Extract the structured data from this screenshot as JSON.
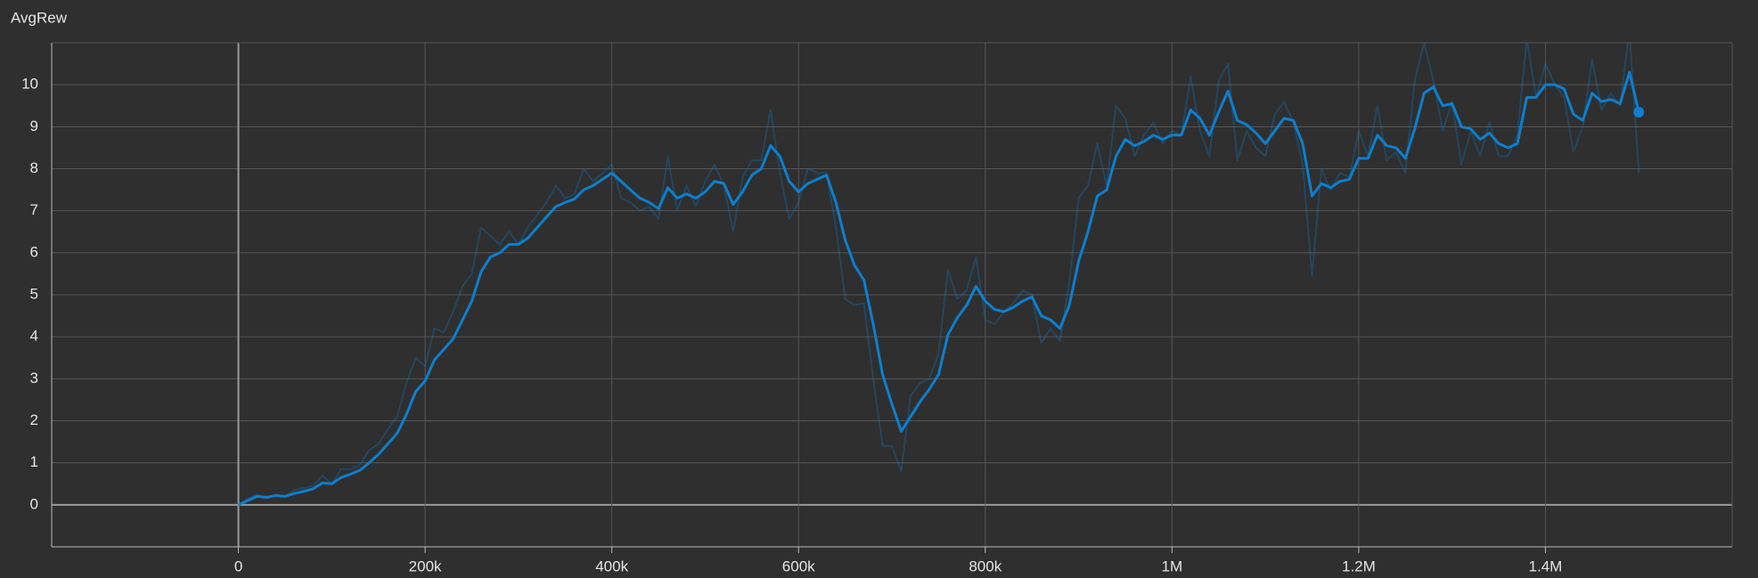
{
  "chart_data": {
    "type": "line",
    "title": "AvgRew",
    "x": [
      0,
      10000,
      20000,
      30000,
      40000,
      50000,
      60000,
      70000,
      80000,
      90000,
      100000,
      110000,
      120000,
      130000,
      140000,
      150000,
      160000,
      170000,
      180000,
      190000,
      200000,
      210000,
      220000,
      230000,
      240000,
      250000,
      260000,
      270000,
      280000,
      290000,
      300000,
      310000,
      320000,
      330000,
      340000,
      350000,
      360000,
      370000,
      380000,
      390000,
      400000,
      410000,
      420000,
      430000,
      440000,
      450000,
      460000,
      470000,
      480000,
      490000,
      500000,
      510000,
      520000,
      530000,
      540000,
      550000,
      560000,
      570000,
      580000,
      590000,
      600000,
      610000,
      620000,
      630000,
      640000,
      650000,
      660000,
      670000,
      680000,
      690000,
      700000,
      710000,
      720000,
      730000,
      740000,
      750000,
      760000,
      770000,
      780000,
      790000,
      800000,
      810000,
      820000,
      830000,
      840000,
      850000,
      860000,
      870000,
      880000,
      890000,
      900000,
      910000,
      920000,
      930000,
      940000,
      950000,
      960000,
      970000,
      980000,
      990000,
      1000000,
      1010000,
      1020000,
      1030000,
      1040000,
      1050000,
      1060000,
      1070000,
      1080000,
      1090000,
      1100000,
      1110000,
      1120000,
      1130000,
      1140000,
      1150000,
      1160000,
      1170000,
      1180000,
      1190000,
      1200000,
      1210000,
      1220000,
      1230000,
      1240000,
      1250000,
      1260000,
      1270000,
      1280000,
      1290000,
      1300000,
      1310000,
      1320000,
      1330000,
      1340000,
      1350000,
      1360000,
      1370000,
      1380000,
      1390000,
      1400000,
      1410000,
      1420000,
      1430000,
      1440000,
      1450000,
      1460000,
      1470000,
      1480000,
      1490000,
      1500000
    ],
    "series": [
      {
        "color": "#0c7fcf",
        "opacity": 0.3,
        "values": [
          0,
          0.15,
          0.25,
          0.15,
          0.25,
          0.2,
          0.35,
          0.4,
          0.45,
          0.7,
          0.5,
          0.85,
          0.85,
          0.95,
          1.3,
          1.45,
          1.8,
          2.1,
          2.9,
          3.5,
          3.3,
          4.2,
          4.1,
          4.6,
          5.2,
          5.5,
          6.6,
          6.4,
          6.2,
          6.5,
          6.2,
          6.6,
          6.9,
          7.2,
          7.6,
          7.3,
          7.4,
          8.0,
          7.7,
          7.9,
          8.1,
          7.3,
          7.2,
          7.0,
          7.1,
          6.8,
          8.3,
          7.0,
          7.6,
          7.1,
          7.7,
          8.1,
          7.6,
          6.5,
          7.8,
          8.2,
          8.2,
          9.4,
          7.9,
          6.8,
          7.2,
          8.0,
          7.9,
          7.9,
          6.6,
          4.9,
          4.75,
          4.8,
          3.0,
          1.4,
          1.4,
          0.8,
          2.6,
          2.9,
          3.0,
          3.6,
          5.6,
          4.9,
          5.1,
          5.9,
          4.4,
          4.3,
          4.6,
          4.8,
          5.1,
          5.0,
          3.85,
          4.2,
          3.9,
          5.3,
          7.3,
          7.6,
          8.6,
          7.6,
          9.5,
          9.2,
          8.3,
          8.8,
          9.1,
          8.6,
          8.9,
          8.8,
          10.2,
          8.9,
          8.3,
          10.1,
          10.5,
          8.2,
          8.9,
          8.5,
          8.3,
          9.3,
          9.6,
          9.1,
          8.1,
          5.45,
          8.0,
          7.5,
          7.9,
          7.8,
          8.9,
          8.3,
          9.5,
          8.2,
          8.4,
          7.9,
          10.1,
          11.0,
          10.1,
          8.9,
          9.6,
          8.1,
          8.9,
          8.3,
          9.1,
          8.3,
          8.3,
          8.8,
          11.1,
          9.7,
          10.5,
          10.0,
          9.7,
          8.4,
          9.0,
          10.6,
          9.4,
          9.8,
          9.5,
          11.3,
          7.9
        ]
      },
      {
        "color": "#0c7fcf",
        "opacity": 1,
        "marker_last": true,
        "values": [
          0,
          0.1,
          0.2,
          0.18,
          0.22,
          0.2,
          0.27,
          0.32,
          0.38,
          0.52,
          0.5,
          0.65,
          0.73,
          0.82,
          1.0,
          1.2,
          1.45,
          1.7,
          2.15,
          2.7,
          2.95,
          3.45,
          3.7,
          3.95,
          4.4,
          4.85,
          5.55,
          5.9,
          6.0,
          6.2,
          6.2,
          6.35,
          6.6,
          6.85,
          7.1,
          7.2,
          7.28,
          7.5,
          7.6,
          7.75,
          7.9,
          7.7,
          7.5,
          7.3,
          7.2,
          7.05,
          7.55,
          7.3,
          7.4,
          7.3,
          7.45,
          7.7,
          7.65,
          7.15,
          7.45,
          7.85,
          8.0,
          8.55,
          8.3,
          7.7,
          7.45,
          7.65,
          7.75,
          7.85,
          7.2,
          6.3,
          5.7,
          5.35,
          4.3,
          3.1,
          2.4,
          1.75,
          2.1,
          2.45,
          2.75,
          3.1,
          4.05,
          4.45,
          4.75,
          5.2,
          4.85,
          4.65,
          4.6,
          4.7,
          4.85,
          4.95,
          4.5,
          4.4,
          4.2,
          4.75,
          5.8,
          6.5,
          7.35,
          7.5,
          8.3,
          8.7,
          8.55,
          8.65,
          8.8,
          8.7,
          8.8,
          8.8,
          9.4,
          9.2,
          8.8,
          9.35,
          9.85,
          9.15,
          9.05,
          8.85,
          8.6,
          8.9,
          9.2,
          9.15,
          8.6,
          7.35,
          7.65,
          7.55,
          7.7,
          7.75,
          8.25,
          8.25,
          8.8,
          8.55,
          8.5,
          8.25,
          8.95,
          9.8,
          9.95,
          9.5,
          9.55,
          9.0,
          8.95,
          8.7,
          8.85,
          8.6,
          8.5,
          8.6,
          9.7,
          9.7,
          10.0,
          10.0,
          9.9,
          9.3,
          9.15,
          9.8,
          9.6,
          9.65,
          9.55,
          10.3,
          9.35
        ]
      }
    ],
    "xlim": [
      -200000,
      1600000
    ],
    "xticks": [
      0,
      {
        "value": 200000,
        "label": "200k"
      },
      {
        "value": 400000,
        "label": "400k"
      },
      {
        "value": 600000,
        "label": "600k"
      },
      {
        "value": 800000,
        "label": "800k"
      },
      {
        "value": 1000000,
        "label": "1M"
      },
      {
        "value": 1200000,
        "label": "1.2M"
      },
      {
        "value": 1400000,
        "label": "1.4M"
      }
    ],
    "ylim": [
      -1,
      11
    ],
    "yticks": [
      0,
      1,
      2,
      3,
      4,
      5,
      6,
      7,
      8,
      9,
      10
    ],
    "grid": true
  }
}
